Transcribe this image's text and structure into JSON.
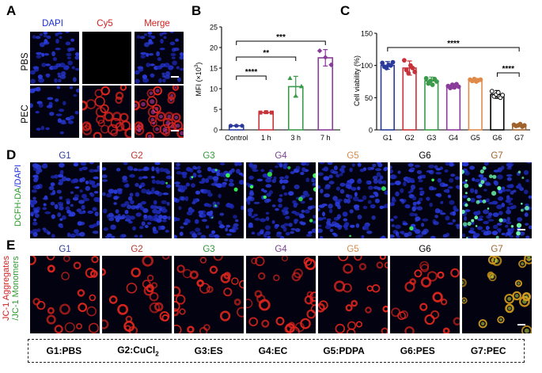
{
  "panels": {
    "A": "A",
    "B": "B",
    "C": "C",
    "D": "D",
    "E": "E"
  },
  "panelA": {
    "columns": [
      "DAPI",
      "Cy5",
      "Merge"
    ],
    "column_colors": [
      "#1c2fd6",
      "#d42020",
      "#d42020"
    ],
    "rows": [
      "PBS",
      "PEC"
    ]
  },
  "panelD": {
    "ylabel_parts": [
      "DCFH-DA",
      "/DAPI"
    ],
    "groups": [
      "G1",
      "G2",
      "G3",
      "G4",
      "G5",
      "G6",
      "G7"
    ]
  },
  "panelE": {
    "ylabel_part1": "JC-1 Aggregates",
    "ylabel_part2": "/JC-1 Monomers",
    "groups": [
      "G1",
      "G2",
      "G3",
      "G4",
      "G5",
      "G6",
      "G7"
    ]
  },
  "group_colors": [
    "#2a3a9c",
    "#b8342c",
    "#2f9a3a",
    "#7a3f8f",
    "#d98a4a",
    "#000000",
    "#a0632c"
  ],
  "legend": [
    {
      "text": "G1:PBS"
    },
    {
      "text": "G2:CuCl2",
      "main": "G2:CuCl",
      "sub": "2"
    },
    {
      "text": "G3:ES"
    },
    {
      "text": "G4:EC"
    },
    {
      "text": "G5:PDPA"
    },
    {
      "text": "G6:PES"
    },
    {
      "text": "G7:PEC"
    }
  ],
  "chart_data": [
    {
      "panel": "B",
      "type": "bar",
      "ylabel": "MFI (×10³)",
      "ylabel_main": "MFI (×10",
      "ylabel_sup": "3",
      "ylabel_end": ")",
      "ylim": [
        0,
        25
      ],
      "yticks": [
        "0",
        "5",
        "10",
        "15",
        "20",
        "25"
      ],
      "categories": [
        "Control",
        "1 h",
        "3 h",
        "7 h"
      ],
      "values": [
        1.0,
        4.2,
        10.5,
        17.5
      ],
      "errors": [
        0.1,
        0.2,
        2.5,
        2.0
      ],
      "colors": [
        "#2a3a9c",
        "#c8323a",
        "#3a9a4a",
        "#8a3c9a"
      ],
      "points": [
        [
          1.0,
          1.0,
          1.0
        ],
        [
          4.2,
          4.3,
          4.2
        ],
        [
          12.6,
          8.3,
          10.6
        ],
        [
          19.2,
          17.6,
          15.8
        ]
      ],
      "significance": [
        {
          "from": "Control",
          "to": "1 h",
          "label": "****"
        },
        {
          "from": "Control",
          "to": "3 h",
          "label": "**"
        },
        {
          "from": "Control",
          "to": "7 h",
          "label": "***"
        }
      ]
    },
    {
      "panel": "C",
      "type": "bar",
      "ylabel": "Cell viability (%)",
      "ylim": [
        0,
        150
      ],
      "yticks": [
        "0",
        "50",
        "100",
        "150"
      ],
      "categories": [
        "G1",
        "G2",
        "G3",
        "G4",
        "G5",
        "G6",
        "G7"
      ],
      "values": [
        100,
        96,
        76,
        68,
        77,
        55,
        7
      ],
      "errors": [
        6,
        11,
        6,
        4,
        3,
        6,
        2
      ],
      "colors": [
        "#2a3a9c",
        "#c8323a",
        "#3a9a4a",
        "#8a3c9a",
        "#e08a4a",
        "#000000",
        "#a0632c"
      ],
      "points": [
        [
          104,
          98,
          96,
          101,
          100,
          105
        ],
        [
          108,
          93,
          88,
          100,
          96,
          90
        ],
        [
          80,
          72,
          76,
          70,
          79,
          75
        ],
        [
          68,
          65,
          70,
          66,
          71,
          67
        ],
        [
          78,
          76,
          79,
          75,
          77,
          78
        ],
        [
          60,
          52,
          55,
          58,
          50,
          54
        ],
        [
          8,
          6,
          7,
          9,
          5,
          7
        ]
      ],
      "significance": [
        {
          "from": "G1",
          "to": "G7",
          "label": "****"
        },
        {
          "from": "G6",
          "to": "G7",
          "label": "****"
        }
      ]
    }
  ]
}
